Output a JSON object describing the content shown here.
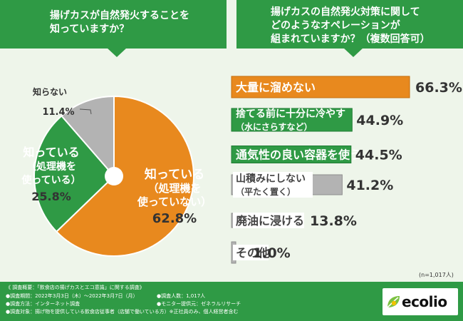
{
  "header_left": "揚げカスが自然発火することを\n知っていますか？",
  "header_right": "揚げカスの自然発火対策に関して\nどのようなオペレーションが\n組まれていますか？（複数回答可）",
  "n_note": "(n=1,017人)",
  "logo_text": "ecolio",
  "colors": {
    "orange": "#e8891e",
    "green": "#2f9a45",
    "gray": "#b3b3b3",
    "pct_text": "#333333"
  },
  "chart_data": [
    {
      "type": "pie",
      "values": [
        62.8,
        25.8,
        11.4
      ],
      "labels": [
        [
          "知っている",
          "（処理機を",
          "使っていない）"
        ],
        [
          "知っている",
          "（処理機を",
          "使っている）"
        ],
        [
          "知らない"
        ]
      ],
      "percent_labels": [
        "62.8%",
        "25.8%",
        "11.4%"
      ]
    },
    {
      "type": "bar",
      "categories": [
        [
          "大量に溜めない"
        ],
        [
          "捨てる前に十分に冷やす",
          "（水にさらすなど）"
        ],
        [
          "通気性の良い容器を使う"
        ],
        [
          "山積みにしない",
          "（平たく置く）"
        ],
        [
          "廃油に浸ける"
        ],
        [
          "その他"
        ]
      ],
      "values": [
        66.3,
        44.9,
        44.5,
        41.2,
        13.8,
        1.0
      ],
      "percent_labels": [
        "66.3%",
        "44.9%",
        "44.5%",
        "41.2%",
        "13.8%",
        "1.0%"
      ]
    }
  ],
  "footer": {
    "overview": "《 調査概要：「飲食店の揚げカスとエコ意識」に関する調査》",
    "period": "●調査期間：2022年3月3日（木）〜2022年3月7日（月）",
    "respondents": "●調査人数：1,017人",
    "method": "●調査方法：インターネット調査",
    "provider": "●モニター提供元：ゼネラルリサーチ",
    "target": "●調査対象：揚げ物を提供している飲食店従事者（店舗で働いている方）※正社員のみ、個人経営者含む"
  }
}
